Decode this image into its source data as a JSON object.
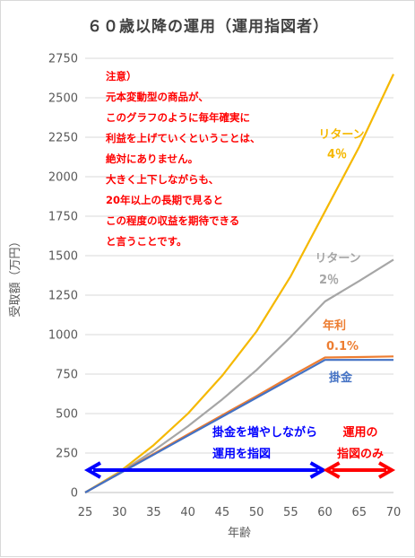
{
  "chart_data": {
    "type": "line",
    "title": "６０歳以降の運用（運用指図者）",
    "xlabel": "年齢",
    "ylabel": "受取額（万円）",
    "xlim": [
      25,
      70
    ],
    "ylim": [
      0,
      2750
    ],
    "x_ticks": [
      "25",
      "30",
      "35",
      "40",
      "45",
      "50",
      "55",
      "60",
      "65",
      "70"
    ],
    "y_ticks": [
      "0",
      "250",
      "500",
      "750",
      "1000",
      "1250",
      "1500",
      "1750",
      "2000",
      "2250",
      "2500",
      "2750"
    ],
    "grid": "horizontal",
    "series": [
      {
        "key": "ret4",
        "label_lines": [
          "リターン",
          "4％"
        ],
        "color": "#f5b800",
        "x": [
          25,
          30,
          35,
          40,
          45,
          50,
          55,
          60,
          65,
          70
        ],
        "y": [
          0,
          130,
          300,
          500,
          740,
          1020,
          1370,
          1780,
          2190,
          2650
        ]
      },
      {
        "key": "ret2",
        "label_lines": [
          "リターン",
          "2％"
        ],
        "color": "#a6a6a6",
        "x": [
          25,
          30,
          35,
          40,
          45,
          50,
          55,
          60,
          65,
          70
        ],
        "y": [
          0,
          125,
          265,
          420,
          590,
          775,
          985,
          1210,
          1340,
          1475
        ]
      },
      {
        "key": "rate01",
        "label_lines": [
          "年利",
          "0.1%"
        ],
        "color": "#ed7d31",
        "x": [
          25,
          30,
          35,
          40,
          45,
          50,
          55,
          60,
          65,
          70
        ],
        "y": [
          0,
          122,
          245,
          368,
          490,
          610,
          735,
          855,
          858,
          862
        ]
      },
      {
        "key": "contrib",
        "label_lines": [
          "掛金"
        ],
        "color": "#4472c4",
        "x": [
          25,
          30,
          35,
          40,
          45,
          50,
          55,
          60,
          65,
          70
        ],
        "y": [
          0,
          120,
          240,
          360,
          480,
          600,
          720,
          840,
          840,
          840
        ]
      }
    ],
    "annotations": {
      "note_lines": [
        "注意）",
        "元本変動型の商品が、",
        "このグラフのように毎年確実に",
        "利益を上げていくということは、",
        "絶対にありません。",
        "大きく上下しながらも、",
        "20年以上の長期で見ると",
        "この程度の収益を期待できる",
        "と言うことです。"
      ],
      "phase1_lines": [
        "掛金を増やしながら",
        "運用を指図"
      ],
      "phase2_lines": [
        "運用の",
        "指図のみ"
      ],
      "phase1_range": [
        25,
        60
      ],
      "phase2_range": [
        60,
        70
      ]
    },
    "colors": {
      "note": "#ff0000",
      "phase1": "#0000ff",
      "phase2": "#ff0000"
    }
  }
}
